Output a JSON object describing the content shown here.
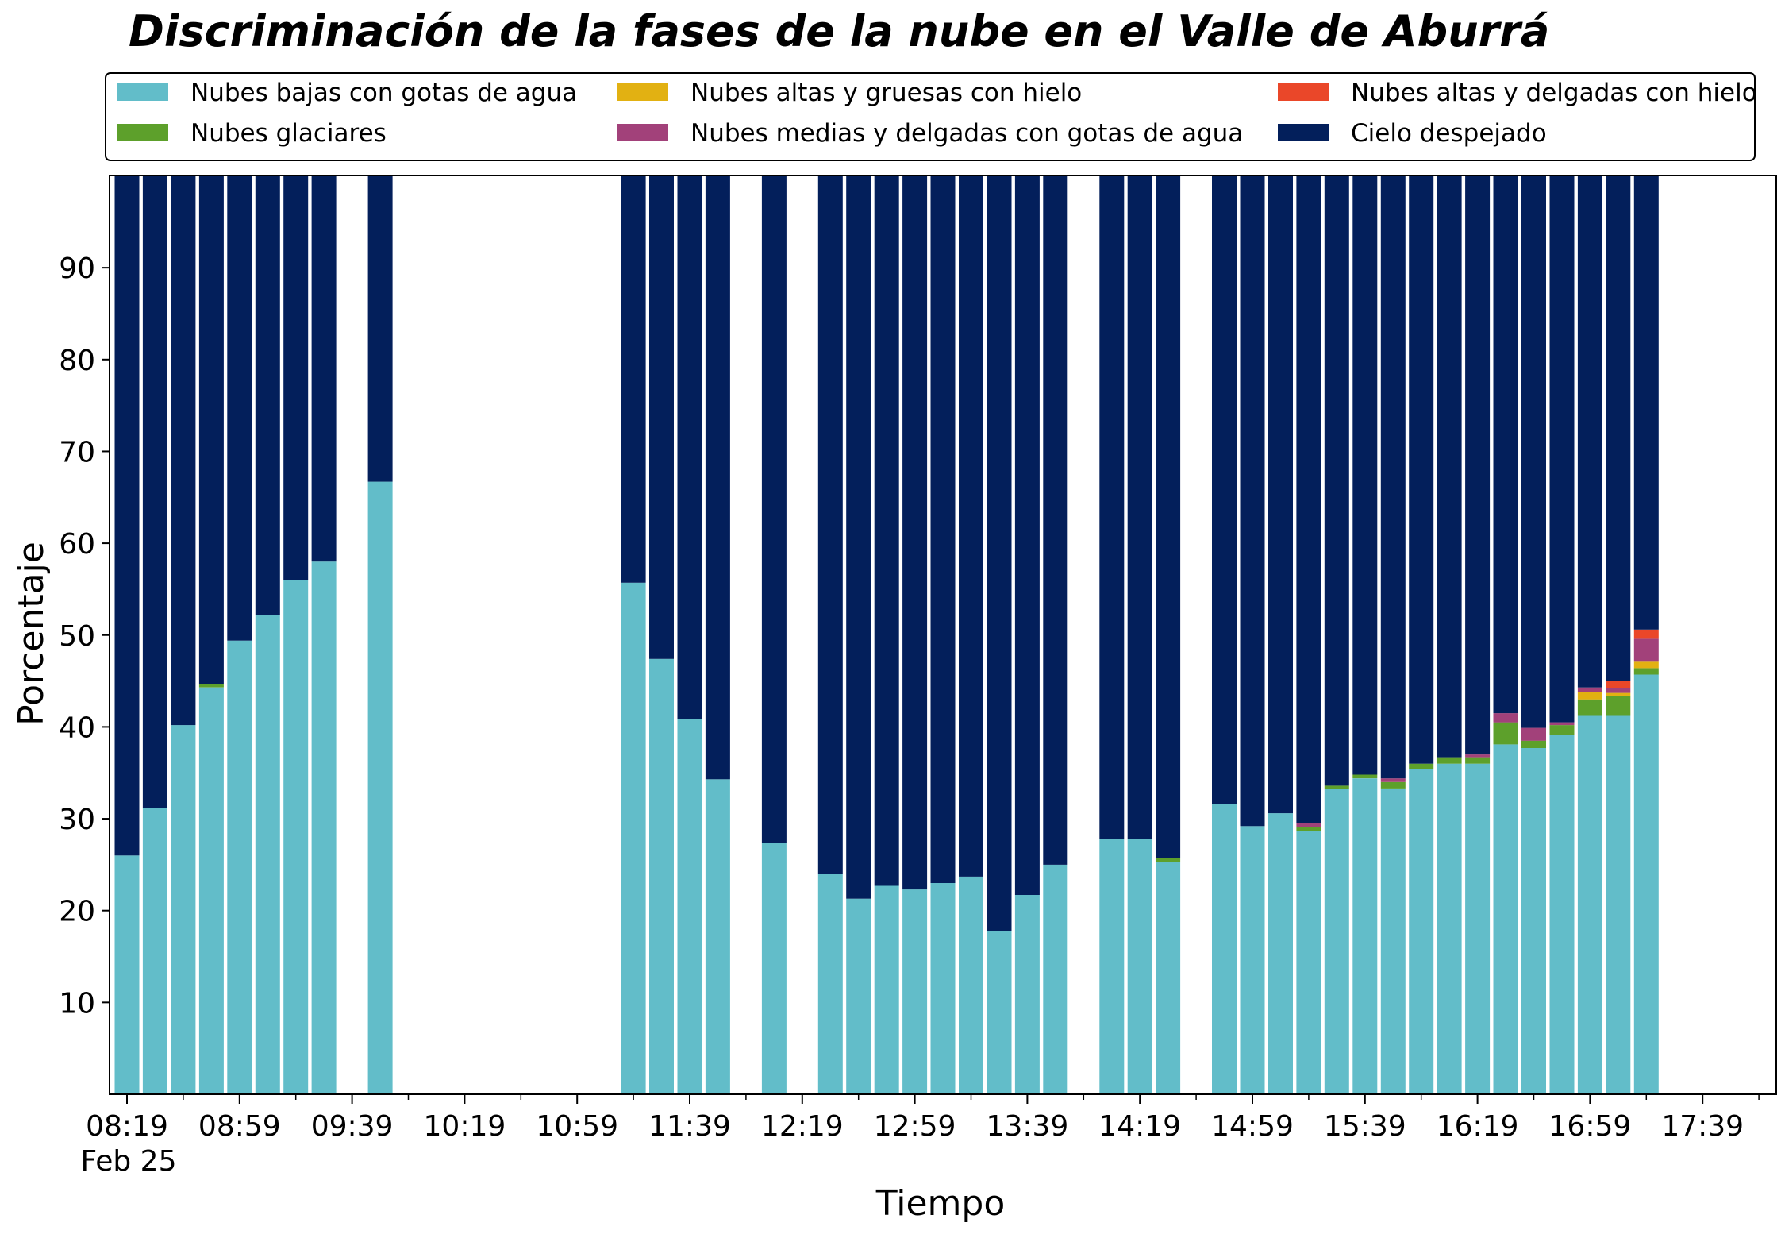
{
  "chart_data": {
    "type": "bar",
    "stacked": true,
    "title": "Discriminación de la fases de la nube en el Valle de Aburrá",
    "xlabel": "Tiempo",
    "ylabel": "Porcentaje",
    "ylim": [
      0,
      100
    ],
    "yticks": [
      10,
      20,
      30,
      40,
      50,
      60,
      70,
      80,
      90
    ],
    "xticks": [
      "08:19",
      "08:59",
      "09:39",
      "10:19",
      "10:59",
      "11:39",
      "12:19",
      "12:59",
      "13:39",
      "14:19",
      "14:59",
      "15:39",
      "16:19",
      "16:59",
      "17:39"
    ],
    "xtick_sublabel": "Feb 25",
    "x": [
      "08:19",
      "08:29",
      "08:39",
      "08:49",
      "08:59",
      "09:09",
      "09:19",
      "09:29",
      "09:49",
      "11:19",
      "11:29",
      "11:39",
      "11:49",
      "12:09",
      "12:29",
      "12:39",
      "12:49",
      "12:59",
      "13:09",
      "13:19",
      "13:29",
      "13:39",
      "13:49",
      "14:09",
      "14:19",
      "14:29",
      "14:49",
      "14:59",
      "15:09",
      "15:19",
      "15:29",
      "15:39",
      "15:49",
      "15:59",
      "16:09",
      "16:19",
      "16:29",
      "16:39",
      "16:49",
      "16:59",
      "17:09",
      "17:19"
    ],
    "legend_placement": "top",
    "grid": false,
    "series": [
      {
        "name": "Nubes bajas con gotas de agua",
        "color": "#62bdc9",
        "values": [
          26.0,
          31.2,
          40.2,
          44.3,
          49.4,
          52.2,
          56.0,
          58.0,
          66.7,
          55.7,
          47.4,
          40.9,
          34.3,
          27.4,
          24.0,
          21.3,
          22.7,
          22.3,
          23.0,
          23.7,
          17.8,
          21.7,
          25.0,
          27.8,
          27.8,
          25.3,
          31.6,
          29.2,
          30.6,
          28.7,
          33.2,
          34.4,
          33.3,
          35.4,
          36.0,
          36.0,
          38.1,
          37.7,
          39.1,
          41.2,
          41.2,
          45.7
        ]
      },
      {
        "name": "Nubes glaciares",
        "color": "#5da02b",
        "values": [
          0,
          0,
          0,
          0.4,
          0,
          0,
          0,
          0,
          0,
          0,
          0,
          0,
          0,
          0,
          0,
          0,
          0,
          0,
          0,
          0,
          0,
          0,
          0,
          0,
          0,
          0.4,
          0,
          0,
          0,
          0.4,
          0.4,
          0.4,
          0.7,
          0.6,
          0.7,
          0.7,
          2.4,
          0.8,
          1.1,
          1.8,
          2.2,
          0.7
        ]
      },
      {
        "name": "Nubes altas y gruesas con hielo",
        "color": "#e2b112",
        "values": [
          0,
          0,
          0,
          0,
          0,
          0,
          0,
          0,
          0,
          0,
          0,
          0,
          0,
          0,
          0,
          0,
          0,
          0,
          0,
          0,
          0,
          0,
          0,
          0,
          0,
          0,
          0,
          0,
          0,
          0,
          0,
          0,
          0,
          0,
          0,
          0,
          0,
          0,
          0,
          0.8,
          0.3,
          0.7
        ]
      },
      {
        "name": "Nubes medias y delgadas con gotas de agua",
        "color": "#a2417a",
        "values": [
          0,
          0,
          0,
          0,
          0,
          0,
          0,
          0,
          0,
          0,
          0,
          0,
          0,
          0,
          0,
          0,
          0,
          0,
          0,
          0,
          0,
          0,
          0,
          0,
          0,
          0,
          0,
          0,
          0,
          0.4,
          0,
          0,
          0.4,
          0,
          0,
          0.3,
          1.0,
          1.4,
          0.3,
          0.5,
          0.5,
          2.5
        ]
      },
      {
        "name": "Nubes altas y delgadas con hielo",
        "color": "#ea4729",
        "values": [
          0,
          0,
          0,
          0,
          0,
          0,
          0,
          0,
          0,
          0,
          0,
          0,
          0,
          0,
          0,
          0,
          0,
          0,
          0,
          0,
          0,
          0,
          0,
          0,
          0,
          0,
          0,
          0,
          0,
          0,
          0,
          0,
          0,
          0,
          0,
          0,
          0,
          0,
          0,
          0,
          0.8,
          1.0
        ]
      },
      {
        "name": "Cielo despejado",
        "color": "#031f5b",
        "values": [
          74.0,
          68.8,
          59.8,
          55.3,
          50.6,
          47.8,
          44.0,
          42.0,
          33.3,
          44.3,
          52.6,
          59.1,
          65.7,
          72.6,
          76.0,
          78.7,
          77.3,
          77.7,
          77.0,
          76.3,
          82.2,
          78.3,
          75.0,
          72.2,
          72.2,
          74.3,
          68.4,
          70.8,
          69.4,
          70.5,
          66.4,
          65.2,
          65.6,
          64.0,
          63.3,
          63.0,
          58.5,
          60.1,
          59.5,
          55.7,
          55.0,
          49.4
        ]
      }
    ]
  }
}
